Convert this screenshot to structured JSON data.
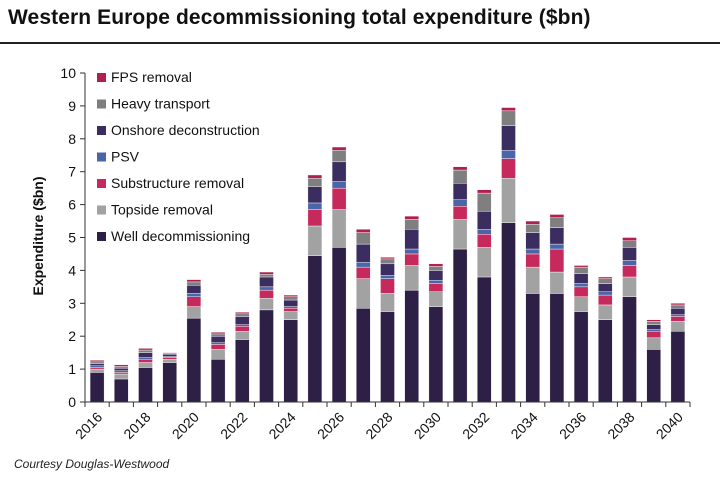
{
  "title": "Western Europe decommissioning total expenditure ($bn)",
  "credit": "Courtesy Douglas-Westwood",
  "colors": {
    "FPS removal": "#b01e52",
    "Heavy transport": "#7f7f7f",
    "Onshore deconstruction": "#3b2d60",
    "PSV": "#4a66a8",
    "Substructure removal": "#c62a5c",
    "Topside removal": "#a2a2a2",
    "Well decommissioning": "#2d1f45"
  },
  "chart_data": {
    "type": "bar",
    "stacked": true,
    "title": "Western Europe decommissioning total expenditure ($bn)",
    "xlabel": "",
    "ylabel": "Expenditure ($bn)",
    "ylim": [
      0,
      10
    ],
    "yticks": [
      "0",
      "1",
      "2",
      "3",
      "4",
      "5",
      "6",
      "7",
      "8",
      "9",
      "10"
    ],
    "categories": [
      "2016",
      "2017",
      "2018",
      "2019",
      "2020",
      "2021",
      "2022",
      "2023",
      "2024",
      "2025",
      "2026",
      "2027",
      "2028",
      "2029",
      "2030",
      "2031",
      "2032",
      "2033",
      "2034",
      "2035",
      "2036",
      "2037",
      "2038",
      "2039",
      "2040"
    ],
    "xtick_labels": [
      "2016",
      "",
      "2018",
      "",
      "2020",
      "",
      "2022",
      "",
      "2024",
      "",
      "2026",
      "",
      "2028",
      "",
      "2030",
      "",
      "2032",
      "",
      "2034",
      "",
      "2036",
      "",
      "2038",
      "",
      "2040"
    ],
    "legend": [
      "FPS removal",
      "Heavy transport",
      "Onshore deconstruction",
      "PSV",
      "Substructure removal",
      "Topside removal",
      "Well decommissioning"
    ],
    "series": [
      {
        "name": "Well decommissioning",
        "values": [
          0.9,
          0.7,
          1.05,
          1.2,
          2.55,
          1.3,
          1.9,
          2.8,
          2.5,
          4.45,
          4.7,
          2.85,
          2.75,
          3.4,
          2.9,
          4.65,
          3.8,
          5.45,
          3.3,
          3.3,
          2.75,
          2.5,
          3.2,
          1.6,
          2.15
        ]
      },
      {
        "name": "Topside removal",
        "values": [
          0.1,
          0.15,
          0.15,
          0.1,
          0.35,
          0.3,
          0.25,
          0.35,
          0.25,
          0.9,
          1.15,
          0.9,
          0.55,
          0.75,
          0.45,
          0.9,
          0.9,
          1.35,
          0.8,
          0.65,
          0.45,
          0.45,
          0.6,
          0.35,
          0.3
        ]
      },
      {
        "name": "Substructure removal",
        "values": [
          0.05,
          0.05,
          0.1,
          0.05,
          0.3,
          0.15,
          0.15,
          0.25,
          0.1,
          0.5,
          0.65,
          0.35,
          0.45,
          0.35,
          0.25,
          0.4,
          0.4,
          0.6,
          0.4,
          0.7,
          0.3,
          0.3,
          0.35,
          0.2,
          0.15
        ]
      },
      {
        "name": "PSV",
        "values": [
          0.05,
          0.05,
          0.05,
          0.03,
          0.1,
          0.05,
          0.05,
          0.1,
          0.05,
          0.2,
          0.2,
          0.15,
          0.1,
          0.15,
          0.1,
          0.2,
          0.15,
          0.25,
          0.15,
          0.15,
          0.1,
          0.1,
          0.15,
          0.05,
          0.05
        ]
      },
      {
        "name": "Onshore deconstruction",
        "values": [
          0.07,
          0.08,
          0.15,
          0.07,
          0.25,
          0.2,
          0.25,
          0.3,
          0.2,
          0.5,
          0.6,
          0.55,
          0.35,
          0.6,
          0.3,
          0.5,
          0.55,
          0.75,
          0.5,
          0.5,
          0.3,
          0.25,
          0.4,
          0.15,
          0.2
        ]
      },
      {
        "name": "Heavy transport",
        "values": [
          0.05,
          0.05,
          0.08,
          0.03,
          0.1,
          0.07,
          0.08,
          0.08,
          0.1,
          0.25,
          0.35,
          0.35,
          0.15,
          0.3,
          0.12,
          0.4,
          0.55,
          0.45,
          0.25,
          0.3,
          0.2,
          0.15,
          0.2,
          0.1,
          0.1
        ]
      },
      {
        "name": "FPS removal",
        "values": [
          0.05,
          0.05,
          0.05,
          0.02,
          0.07,
          0.05,
          0.05,
          0.07,
          0.05,
          0.1,
          0.1,
          0.1,
          0.05,
          0.1,
          0.08,
          0.1,
          0.1,
          0.1,
          0.1,
          0.1,
          0.05,
          0.05,
          0.1,
          0.05,
          0.05
        ]
      }
    ]
  }
}
